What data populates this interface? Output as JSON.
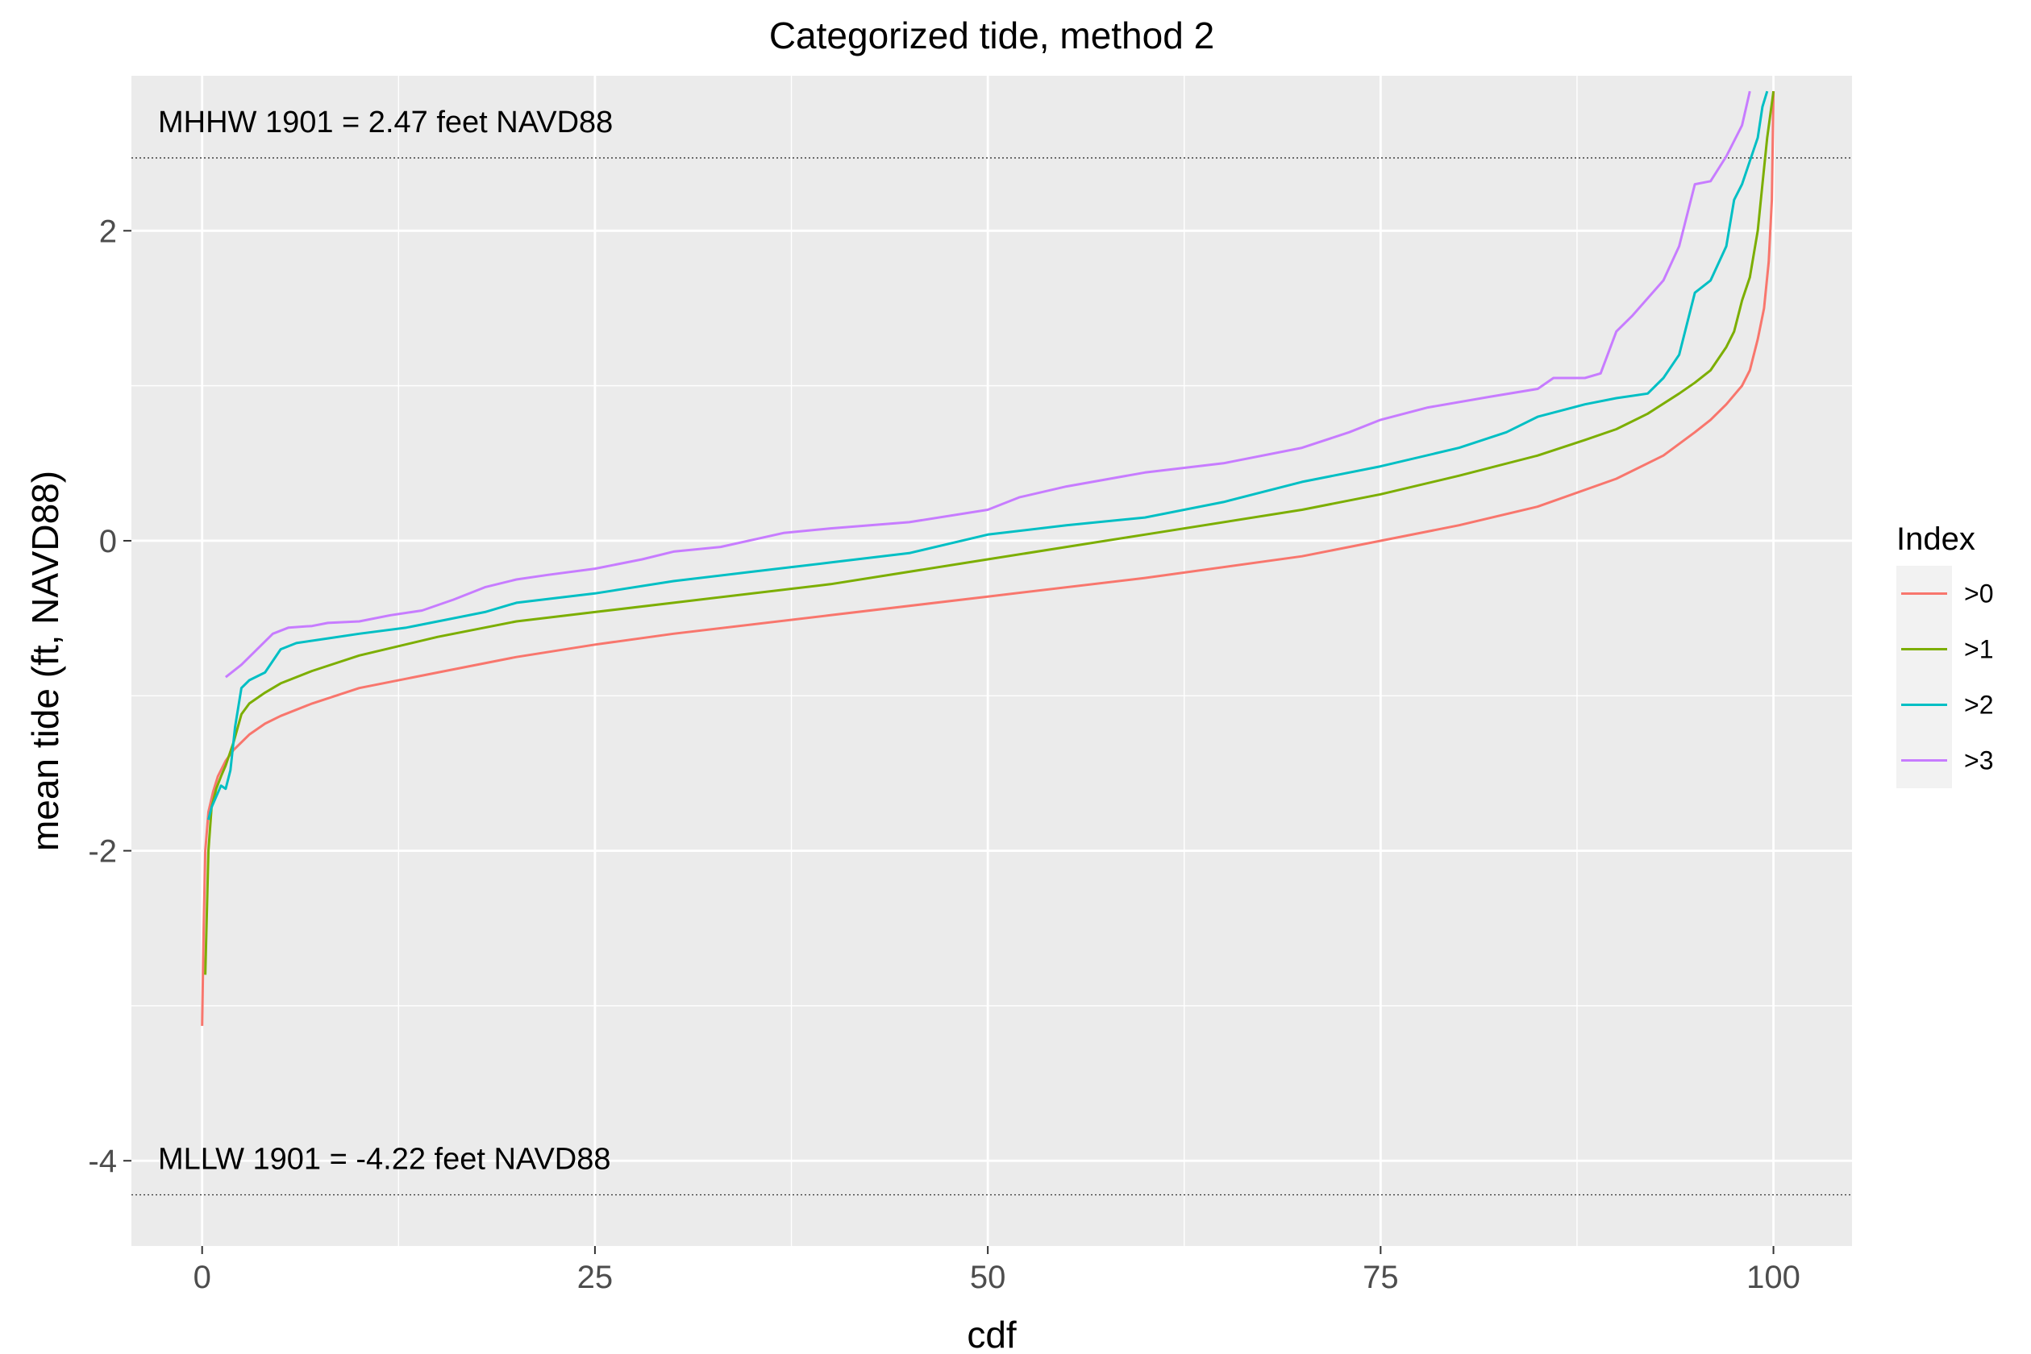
{
  "chart_data": {
    "type": "line",
    "title": "Categorized tide, method 2",
    "xlabel": "cdf",
    "ylabel": "mean tide (ft, NAVD88)",
    "xlim": [
      -4.5,
      105
    ],
    "ylim": [
      -4.55,
      3.0
    ],
    "x_ticks": [
      0,
      25,
      50,
      75,
      100
    ],
    "x_tick_labels": [
      "0",
      "25",
      "50",
      "75",
      "100"
    ],
    "y_ticks": [
      -4,
      -2,
      0,
      2
    ],
    "y_tick_labels": [
      "-4",
      "-2",
      "0",
      "2"
    ],
    "grid": true,
    "legend": {
      "title": "Index",
      "position": "right"
    },
    "reference_lines": [
      {
        "y": 2.47,
        "label": "MHHW 1901 = 2.47 feet NAVD88",
        "style": "dotted"
      },
      {
        "y": -4.22,
        "label": "MLLW 1901 = -4.22 feet NAVD88",
        "style": "dotted"
      }
    ],
    "series": [
      {
        "name": ">0",
        "color": "#F8766D",
        "x": [
          0,
          0.1,
          0.2,
          0.4,
          0.7,
          1,
          1.5,
          2,
          3,
          4,
          5,
          7,
          10,
          15,
          20,
          25,
          30,
          40,
          50,
          60,
          70,
          75,
          80,
          85,
          90,
          93,
          95,
          96,
          97,
          98,
          98.5,
          99,
          99.4,
          99.7,
          99.9,
          100
        ],
        "y": [
          -3.13,
          -2.5,
          -2.0,
          -1.75,
          -1.62,
          -1.52,
          -1.42,
          -1.35,
          -1.25,
          -1.18,
          -1.13,
          -1.05,
          -0.95,
          -0.85,
          -0.75,
          -0.67,
          -0.6,
          -0.48,
          -0.36,
          -0.24,
          -0.1,
          0.0,
          0.1,
          0.22,
          0.4,
          0.55,
          0.7,
          0.78,
          0.88,
          1.0,
          1.1,
          1.3,
          1.5,
          1.8,
          2.2,
          2.9
        ]
      },
      {
        "name": ">1",
        "color": "#7CAE00",
        "x": [
          0.2,
          0.4,
          0.6,
          0.9,
          1.2,
          1.5,
          2,
          2.5,
          3,
          4,
          5,
          7,
          10,
          15,
          20,
          25,
          30,
          40,
          50,
          60,
          70,
          75,
          80,
          85,
          88,
          90,
          92,
          94,
          95,
          96,
          97,
          97.5,
          98,
          98.5,
          99,
          99.3,
          99.6,
          100
        ],
        "y": [
          -2.8,
          -2.0,
          -1.72,
          -1.6,
          -1.52,
          -1.45,
          -1.3,
          -1.12,
          -1.05,
          -0.98,
          -0.92,
          -0.84,
          -0.74,
          -0.62,
          -0.52,
          -0.46,
          -0.4,
          -0.28,
          -0.12,
          0.04,
          0.2,
          0.3,
          0.42,
          0.55,
          0.65,
          0.72,
          0.82,
          0.95,
          1.02,
          1.1,
          1.25,
          1.35,
          1.55,
          1.7,
          2.0,
          2.3,
          2.6,
          2.9
        ]
      },
      {
        "name": ">2",
        "color": "#00BFC4",
        "x": [
          0.4,
          0.6,
          0.9,
          1.2,
          1.5,
          1.8,
          2.1,
          2.5,
          3,
          4,
          5,
          6,
          8,
          10,
          13,
          15,
          18,
          20,
          25,
          30,
          35,
          40,
          45,
          50,
          55,
          60,
          65,
          70,
          75,
          80,
          83,
          85,
          88,
          90,
          92,
          93,
          94,
          95,
          96,
          97,
          97.5,
          98,
          98.5,
          99,
          99.3,
          99.6
        ],
        "y": [
          -1.8,
          -1.72,
          -1.65,
          -1.58,
          -1.6,
          -1.48,
          -1.2,
          -0.95,
          -0.9,
          -0.85,
          -0.7,
          -0.66,
          -0.63,
          -0.6,
          -0.56,
          -0.52,
          -0.46,
          -0.4,
          -0.34,
          -0.26,
          -0.2,
          -0.14,
          -0.08,
          0.04,
          0.1,
          0.15,
          0.25,
          0.38,
          0.48,
          0.6,
          0.7,
          0.8,
          0.88,
          0.92,
          0.95,
          1.05,
          1.2,
          1.6,
          1.68,
          1.9,
          2.2,
          2.3,
          2.45,
          2.6,
          2.8,
          2.9
        ]
      },
      {
        "name": ">3",
        "color": "#C77CFF",
        "x": [
          1.5,
          2.5,
          3.5,
          4.5,
          5.5,
          7,
          8,
          10,
          12,
          14,
          16,
          18,
          20,
          22,
          25,
          28,
          30,
          33,
          37,
          40,
          45,
          50,
          52,
          55,
          60,
          65,
          70,
          73,
          75,
          78,
          82,
          85,
          86,
          88,
          89,
          90,
          91,
          93,
          94,
          95,
          96,
          97,
          98,
          98.5
        ],
        "y": [
          -0.88,
          -0.8,
          -0.7,
          -0.6,
          -0.56,
          -0.55,
          -0.53,
          -0.52,
          -0.48,
          -0.45,
          -0.38,
          -0.3,
          -0.25,
          -0.22,
          -0.18,
          -0.12,
          -0.07,
          -0.04,
          0.05,
          0.08,
          0.12,
          0.2,
          0.28,
          0.35,
          0.44,
          0.5,
          0.6,
          0.7,
          0.78,
          0.86,
          0.93,
          0.98,
          1.05,
          1.05,
          1.08,
          1.35,
          1.45,
          1.68,
          1.9,
          2.3,
          2.32,
          2.48,
          2.68,
          2.9
        ]
      }
    ]
  }
}
